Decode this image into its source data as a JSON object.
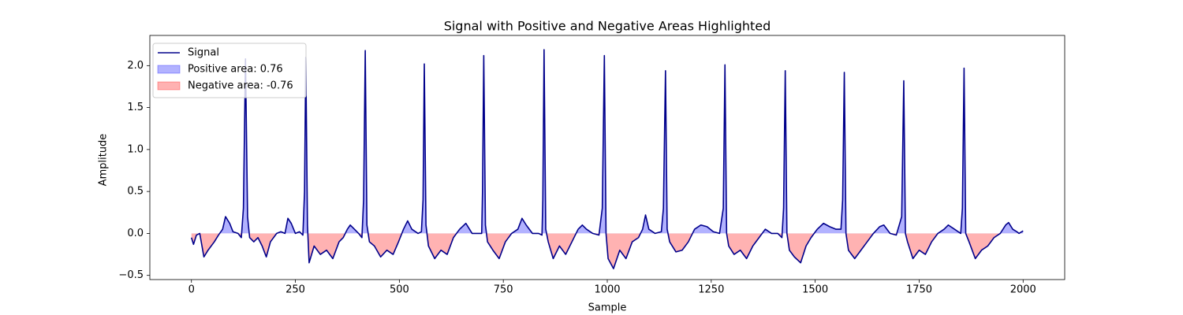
{
  "chart_data": {
    "type": "line",
    "title": "Signal with Positive and Negative Areas Highlighted",
    "x_label": "Sample",
    "y_label": "Amplitude",
    "xlim": [
      -100,
      2100
    ],
    "ylim": [
      -0.55,
      2.36
    ],
    "xticks": [
      0,
      250,
      500,
      750,
      1000,
      1250,
      1500,
      1750,
      2000
    ],
    "yticks": [
      {
        "value": -0.5,
        "label": "−0.5"
      },
      {
        "value": 0,
        "label": "0.0"
      },
      0.5,
      {
        "value": 1,
        "label": "1.0"
      },
      1.5,
      {
        "value": 2,
        "label": "2.0"
      }
    ],
    "grid": false,
    "legend": "upper left",
    "series": [
      {
        "name": "Signal",
        "color": "#00008b",
        "x": [
          0,
          5,
          12,
          20,
          30,
          40,
          55,
          65,
          75,
          82,
          92,
          100,
          112,
          120,
          125,
          130,
          135,
          140,
          150,
          160,
          170,
          180,
          190,
          205,
          215,
          225,
          232,
          240,
          250,
          260,
          268,
          272,
          275,
          279,
          283,
          295,
          310,
          325,
          340,
          355,
          365,
          375,
          382,
          392,
          402,
          410,
          414,
          418,
          422,
          428,
          440,
          455,
          470,
          485,
          498,
          510,
          520,
          530,
          545,
          553,
          557,
          560,
          564,
          570,
          585,
          600,
          615,
          630,
          645,
          660,
          675,
          690,
          698,
          700,
          703,
          707,
          712,
          725,
          740,
          755,
          770,
          785,
          795,
          805,
          820,
          835,
          843,
          845,
          848,
          852,
          858,
          870,
          885,
          900,
          915,
          930,
          940,
          950,
          965,
          980,
          988,
          993,
          997,
          1002,
          1015,
          1030,
          1045,
          1060,
          1075,
          1085,
          1092,
          1100,
          1115,
          1130,
          1135,
          1140,
          1144,
          1150,
          1165,
          1180,
          1195,
          1210,
          1225,
          1240,
          1255,
          1270,
          1279,
          1283,
          1287,
          1292,
          1305,
          1320,
          1335,
          1350,
          1365,
          1380,
          1395,
          1410,
          1420,
          1424,
          1428,
          1432,
          1438,
          1450,
          1465,
          1478,
          1490,
          1505,
          1520,
          1535,
          1550,
          1562,
          1566,
          1570,
          1574,
          1580,
          1595,
          1610,
          1625,
          1640,
          1655,
          1665,
          1680,
          1695,
          1708,
          1713,
          1717,
          1722,
          1735,
          1750,
          1765,
          1780,
          1795,
          1810,
          1820,
          1835,
          1850,
          1854,
          1858,
          1862,
          1870,
          1885,
          1900,
          1915,
          1930,
          1945,
          1958,
          1965,
          1975,
          1985,
          1990,
          2000
        ],
        "values": [
          -0.05,
          -0.13,
          -0.02,
          0.0,
          -0.28,
          -0.2,
          -0.1,
          -0.02,
          0.05,
          0.2,
          0.12,
          0.02,
          0.0,
          -0.05,
          0.3,
          2.08,
          0.2,
          -0.05,
          -0.1,
          -0.05,
          -0.15,
          -0.28,
          -0.1,
          0.0,
          0.02,
          0.0,
          0.18,
          0.12,
          0.0,
          0.02,
          -0.02,
          0.5,
          2.1,
          0.1,
          -0.35,
          -0.15,
          -0.25,
          -0.2,
          -0.3,
          -0.1,
          -0.05,
          0.05,
          0.1,
          0.05,
          0.0,
          -0.05,
          0.4,
          2.18,
          0.1,
          -0.1,
          -0.15,
          -0.28,
          -0.2,
          -0.25,
          -0.1,
          0.05,
          0.15,
          0.05,
          0.0,
          0.02,
          0.4,
          2.02,
          0.1,
          -0.15,
          -0.3,
          -0.2,
          -0.25,
          -0.05,
          0.05,
          0.12,
          0.0,
          0.0,
          0.0,
          0.5,
          2.12,
          0.1,
          -0.1,
          -0.2,
          -0.3,
          -0.1,
          0.0,
          0.05,
          0.18,
          0.1,
          0.0,
          0.0,
          -0.02,
          0.4,
          2.19,
          0.05,
          -0.1,
          -0.3,
          -0.15,
          -0.25,
          -0.1,
          0.05,
          0.1,
          0.05,
          0.0,
          -0.02,
          0.3,
          2.12,
          0.0,
          -0.3,
          -0.42,
          -0.2,
          -0.3,
          -0.1,
          -0.05,
          0.05,
          0.22,
          0.05,
          0.0,
          0.02,
          0.3,
          1.94,
          0.05,
          -0.1,
          -0.22,
          -0.2,
          -0.1,
          0.05,
          0.1,
          0.08,
          0.02,
          0.0,
          0.3,
          2.01,
          0.0,
          -0.15,
          -0.25,
          -0.2,
          -0.3,
          -0.15,
          -0.05,
          0.05,
          0.0,
          0.0,
          -0.05,
          0.3,
          1.94,
          0.0,
          -0.2,
          -0.28,
          -0.35,
          -0.15,
          -0.05,
          0.05,
          0.12,
          0.08,
          0.05,
          0.05,
          0.4,
          1.92,
          0.0,
          -0.2,
          -0.3,
          -0.2,
          -0.1,
          0.0,
          0.08,
          0.1,
          0.0,
          -0.02,
          0.2,
          1.82,
          0.0,
          -0.1,
          -0.3,
          -0.2,
          -0.25,
          -0.1,
          0.0,
          0.05,
          0.1,
          0.05,
          0.0,
          0.3,
          1.97,
          0.0,
          -0.1,
          -0.3,
          -0.2,
          -0.15,
          -0.05,
          0.0,
          0.1,
          0.13,
          0.05,
          0.02,
          0.0,
          0.03
        ]
      }
    ],
    "fills": [
      {
        "name": "Positive area: 0.76",
        "color": "#0000ff",
        "side": "positive"
      },
      {
        "name": "Negative area: -0.76",
        "color": "#ff0000",
        "side": "negative"
      }
    ]
  }
}
